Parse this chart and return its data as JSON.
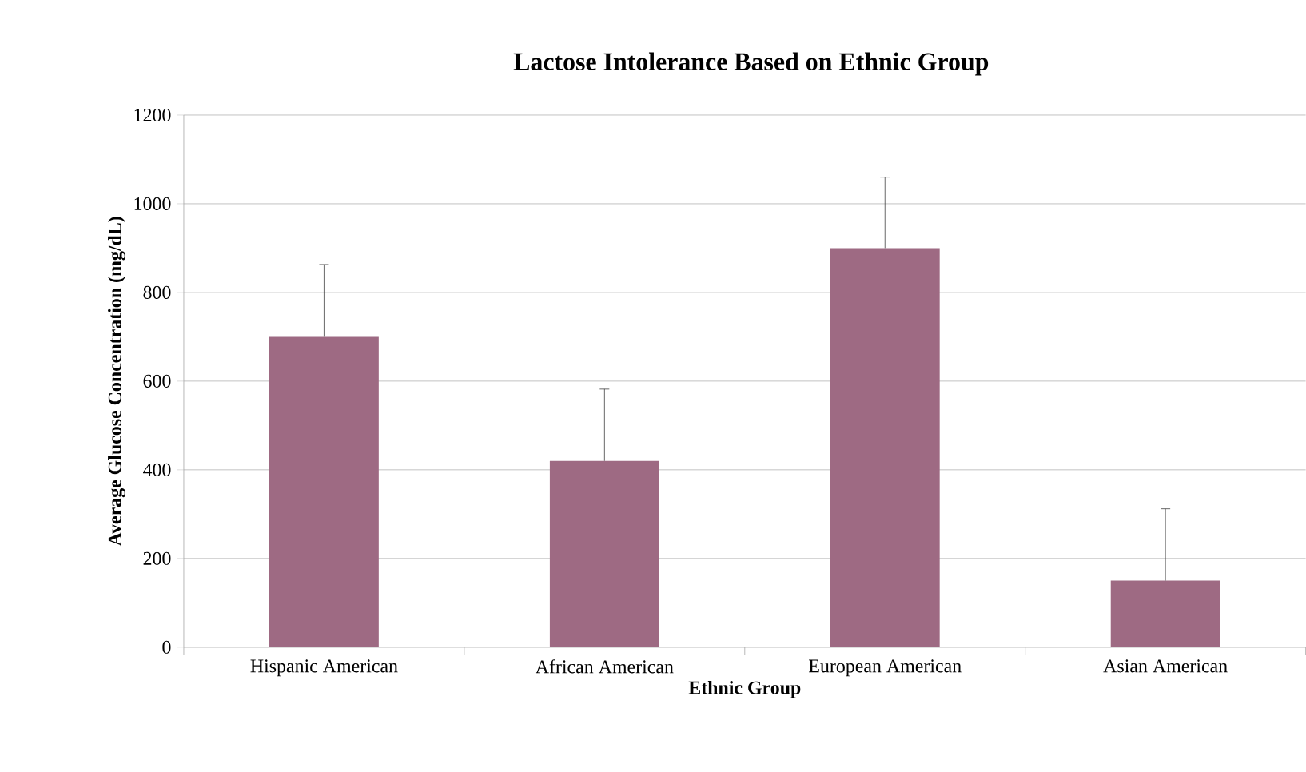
{
  "chart_data": {
    "type": "bar",
    "title": "Lactose Intolerance Based on Ethnic Group",
    "xlabel": "Ethnic Group",
    "ylabel": "Average Glucose Concentration (mg/dL)",
    "categories": [
      "Hispanic American",
      "African American",
      "European American",
      "Asian American"
    ],
    "values": [
      700,
      420,
      900,
      150
    ],
    "color": "#9e6a83",
    "errors": [
      [
        700,
        863
      ],
      [
        420,
        582
      ],
      [
        900,
        1060
      ],
      [
        150,
        312
      ]
    ],
    "ylim": [
      0,
      1200
    ],
    "yticks": [
      0,
      200,
      400,
      600,
      800,
      1000,
      1200
    ],
    "grid": "y"
  }
}
